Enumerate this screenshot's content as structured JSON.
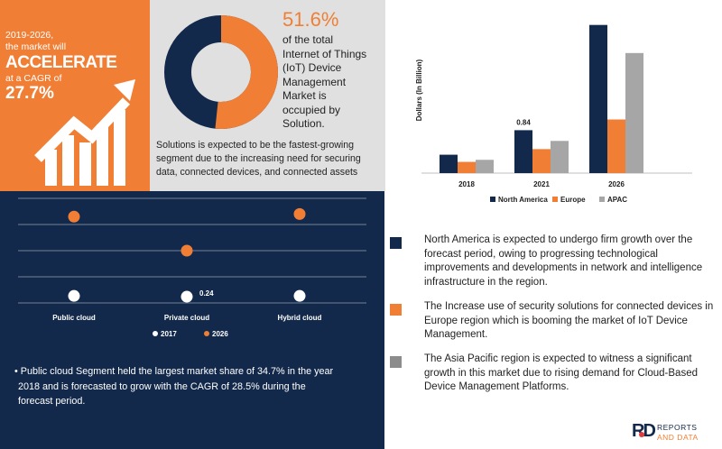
{
  "hero": {
    "period_text": "2019-2026,",
    "market_text": "the market will",
    "accelerate_text": "ACCELERATE",
    "cagr_text": "at a CAGR of",
    "cagr_value": "27.7%"
  },
  "donut": {
    "percent_text": "51.6%",
    "solution_share": 51.6,
    "description": [
      "of the total",
      "Internet of Things",
      "(IoT) Device",
      "Management",
      "Market is",
      "occupied by",
      "Solution."
    ],
    "colors": {
      "solution": "#f07f35",
      "other": "#13294b"
    }
  },
  "solutions_note": [
    "Solutions is expected to be the fastest-growing",
    "segment due to the increasing need for securing",
    "data, connected devices, and connected assets"
  ],
  "bar_chart_ylabel": "Dollars (In Billion)",
  "dot_chart_label": "0.24",
  "public_cloud_note": [
    "•  Public cloud Segment held the largest market share of  34.7% in the year",
    "2018 and is forecasted to grow with the CAGR of 28.5% during the",
    "forecast period."
  ],
  "region_notes": [
    {
      "color": "#13294b",
      "lines": [
        "North America is expected to undergo firm growth over the",
        "forecast period, owing to progressing technological",
        "improvements and developments in network and intelligence",
        "infrastructure in the region."
      ]
    },
    {
      "color": "#f07f35",
      "lines": [
        "The Increase use of security solutions for connected devices in",
        "Europe region which  is booming the market of IoT Device",
        "Management."
      ]
    },
    {
      "color": "#8c8c8c",
      "lines": [
        "The Asia Pacific region is expected to witness a significant",
        "growth in this market due to rising demand for Cloud-Based",
        "Device Management Platforms."
      ]
    }
  ],
  "logo": {
    "mark": "RD",
    "line1": "REPORTS",
    "line2": "AND DATA"
  },
  "colors": {
    "navy": "#13294b",
    "orange": "#f07f35",
    "grey": "#a6a6a6"
  },
  "chart_data": [
    {
      "type": "bar",
      "categories": [
        "2018",
        "2021",
        "2026"
      ],
      "ylabel": "Dollars (In Billion)",
      "series": [
        {
          "name": "North America",
          "color": "#13294b",
          "values": [
            0.36,
            0.84,
            2.9
          ]
        },
        {
          "name": "Europe",
          "color": "#f07f35",
          "values": [
            0.22,
            0.47,
            1.05
          ]
        },
        {
          "name": "APAC",
          "color": "#a6a6a6",
          "values": [
            0.26,
            0.63,
            2.35
          ]
        }
      ],
      "data_labels": [
        {
          "series": "North America",
          "category": "2021",
          "text": "0.84"
        }
      ],
      "ylim": [
        0,
        3.0
      ],
      "legend_position": "bottom"
    },
    {
      "type": "scatter",
      "categories": [
        "Public cloud",
        "Private cloud",
        "Hybrid cloud"
      ],
      "series": [
        {
          "name": "2017",
          "color": "#ffffff",
          "values": [
            0.27,
            0.24,
            0.27
          ]
        },
        {
          "name": "2026",
          "color": "#f07f35",
          "values": [
            3.3,
            2.0,
            3.4
          ]
        }
      ],
      "data_labels": [
        {
          "series": "2017",
          "category": "Private cloud",
          "text": "0.24"
        }
      ],
      "ylim": [
        0,
        4
      ],
      "grid": true,
      "legend_position": "bottom"
    }
  ]
}
